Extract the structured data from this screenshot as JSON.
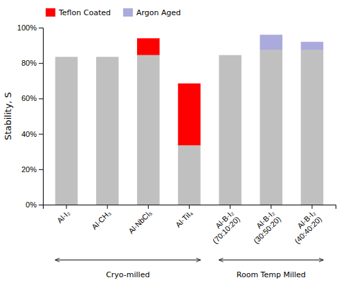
{
  "chart_data": {
    "type": "bar",
    "stacked": true,
    "categories": [
      "Al·I₂",
      "Al·CH₃",
      "Al·NbCl₅",
      "Al·TiI₄",
      "Al·B·I₂\n(70:10:20)",
      "Al·B·I₂\n(30:50:20)",
      "Al·B·I₂\n(40:40:20)"
    ],
    "series": [
      {
        "color": "#c0c0c0",
        "values": [
          0.835,
          0.835,
          0.845,
          0.335,
          0.845,
          0.875,
          0.875
        ]
      },
      {
        "name": "Teflon Coated",
        "color": "#ff0000",
        "values": [
          0.0,
          0.0,
          0.095,
          0.35,
          0.0,
          0.0,
          0.0
        ]
      },
      {
        "name": "Argon Aged",
        "color": "#aaaadd",
        "values": [
          0.0,
          0.0,
          0.0,
          0.0,
          0.0,
          0.085,
          0.045
        ]
      }
    ],
    "ylabel": "Stability, S",
    "ylim": [
      0,
      1.0
    ],
    "yticks": [
      {
        "value": 0.0,
        "label": "0%"
      },
      {
        "value": 0.2,
        "label": "20%"
      },
      {
        "value": 0.4,
        "label": "40%"
      },
      {
        "value": 0.6,
        "label": "60%"
      },
      {
        "value": 0.8,
        "label": "80%"
      },
      {
        "value": 1.0,
        "label": "100%"
      }
    ],
    "annotations": [
      {
        "text": "Cryo-milled",
        "start": "Al·I₂",
        "end": "Al·TiI₄"
      },
      {
        "text": "Room Temp Milled",
        "start": "Al·B·I₂\n(70:10:20)",
        "end": "Al·B·I₂\n(40:40:20)"
      }
    ],
    "legend": "upper left",
    "grid": false
  }
}
